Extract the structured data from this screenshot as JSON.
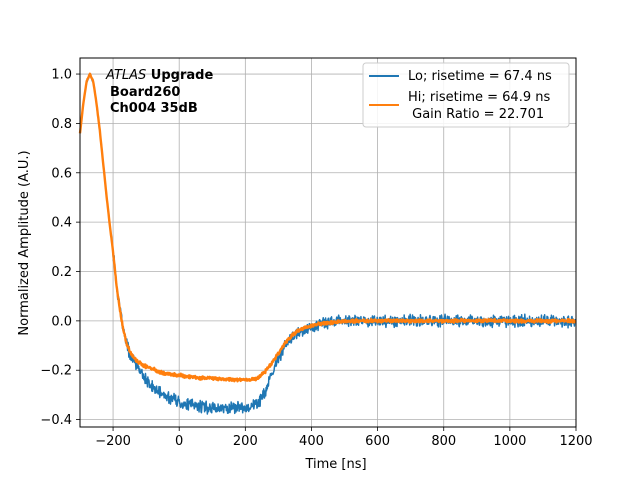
{
  "chart_data": {
    "type": "line",
    "title": "",
    "xlabel": "Time [ns]",
    "ylabel": "Normalized Amplitude (A.U.)",
    "xlim": [
      -300,
      1200
    ],
    "ylim": [
      -0.43,
      1.065
    ],
    "grid": true,
    "xticks": [
      -200,
      0,
      200,
      400,
      600,
      800,
      1000,
      1200
    ],
    "xtick_labels": [
      "−200",
      "0",
      "200",
      "400",
      "600",
      "800",
      "1000",
      "1200"
    ],
    "yticks": [
      -0.4,
      -0.2,
      0.0,
      0.2,
      0.4,
      0.6,
      0.8,
      1.0
    ],
    "ytick_labels": [
      "−0.4",
      "−0.2",
      "0.0",
      "0.2",
      "0.4",
      "0.6",
      "0.8",
      "1.0"
    ],
    "annotation": {
      "italic": "ATLAS",
      "bold_line1": " Upgrade",
      "line2": "Board260",
      "line3": "Ch004 35dB"
    },
    "legend_position": "upper right",
    "series": [
      {
        "name": "Lo; risetime = 67.4 ns",
        "legend_lines": [
          "Lo; risetime = 67.4 ns"
        ],
        "color": "#1f77b4",
        "noise": 0.018,
        "x": [
          -300,
          -290,
          -280,
          -270,
          -260,
          -250,
          -240,
          -230,
          -220,
          -210,
          -200,
          -190,
          -180,
          -170,
          -160,
          -150,
          -140,
          -130,
          -120,
          -110,
          -100,
          -90,
          -80,
          -70,
          -60,
          -50,
          -40,
          -30,
          -20,
          -10,
          0,
          20,
          40,
          60,
          80,
          100,
          120,
          140,
          160,
          180,
          200,
          220,
          240,
          260,
          280,
          300,
          320,
          340,
          360,
          380,
          400,
          420,
          440,
          460,
          480,
          500,
          550,
          600,
          650,
          700,
          750,
          800,
          850,
          900,
          950,
          1000,
          1050,
          1100,
          1150,
          1200
        ],
        "y": [
          0.76,
          0.88,
          0.97,
          1.0,
          0.97,
          0.88,
          0.77,
          0.64,
          0.51,
          0.39,
          0.28,
          0.15,
          0.05,
          -0.03,
          -0.09,
          -0.13,
          -0.16,
          -0.18,
          -0.2,
          -0.22,
          -0.24,
          -0.26,
          -0.27,
          -0.28,
          -0.29,
          -0.3,
          -0.305,
          -0.31,
          -0.315,
          -0.32,
          -0.33,
          -0.34,
          -0.34,
          -0.345,
          -0.35,
          -0.35,
          -0.355,
          -0.355,
          -0.35,
          -0.35,
          -0.35,
          -0.345,
          -0.33,
          -0.29,
          -0.22,
          -0.15,
          -0.1,
          -0.07,
          -0.05,
          -0.035,
          -0.025,
          -0.015,
          -0.01,
          -0.005,
          0.0,
          0.0,
          0.0,
          0.0,
          0.0,
          0.0,
          0.0,
          0.0,
          0.0,
          0.0,
          0.0,
          0.0,
          0.0,
          0.0,
          0.0,
          0.0
        ]
      },
      {
        "name": "Hi; risetime = 64.9 ns Gain Ratio = 22.701",
        "legend_lines": [
          "Hi; risetime = 64.9 ns",
          " Gain Ratio = 22.701"
        ],
        "color": "#ff7f0e",
        "noise": 0.005,
        "x": [
          -300,
          -290,
          -280,
          -270,
          -260,
          -250,
          -240,
          -230,
          -220,
          -210,
          -200,
          -190,
          -180,
          -170,
          -160,
          -150,
          -140,
          -130,
          -120,
          -110,
          -100,
          -90,
          -80,
          -70,
          -60,
          -50,
          -40,
          -30,
          -20,
          -10,
          0,
          20,
          40,
          60,
          80,
          100,
          120,
          140,
          160,
          180,
          200,
          220,
          240,
          260,
          280,
          300,
          320,
          340,
          360,
          380,
          400,
          420,
          440,
          460,
          480,
          500,
          550,
          600,
          650,
          700,
          750,
          800,
          850,
          900,
          950,
          1000,
          1050,
          1100,
          1150,
          1200
        ],
        "y": [
          0.76,
          0.88,
          0.97,
          1.0,
          0.97,
          0.88,
          0.77,
          0.64,
          0.51,
          0.39,
          0.28,
          0.15,
          0.05,
          -0.03,
          -0.09,
          -0.12,
          -0.145,
          -0.16,
          -0.17,
          -0.18,
          -0.185,
          -0.19,
          -0.195,
          -0.2,
          -0.205,
          -0.21,
          -0.212,
          -0.215,
          -0.217,
          -0.22,
          -0.22,
          -0.225,
          -0.228,
          -0.23,
          -0.232,
          -0.233,
          -0.235,
          -0.236,
          -0.237,
          -0.238,
          -0.238,
          -0.237,
          -0.23,
          -0.205,
          -0.17,
          -0.13,
          -0.09,
          -0.06,
          -0.04,
          -0.028,
          -0.02,
          -0.013,
          -0.009,
          -0.006,
          -0.003,
          -0.002,
          0.0,
          0.0,
          0.0,
          0.0,
          0.0,
          0.0,
          0.0,
          0.0,
          0.0,
          0.0,
          0.0,
          0.0,
          0.0,
          0.0
        ]
      }
    ]
  }
}
